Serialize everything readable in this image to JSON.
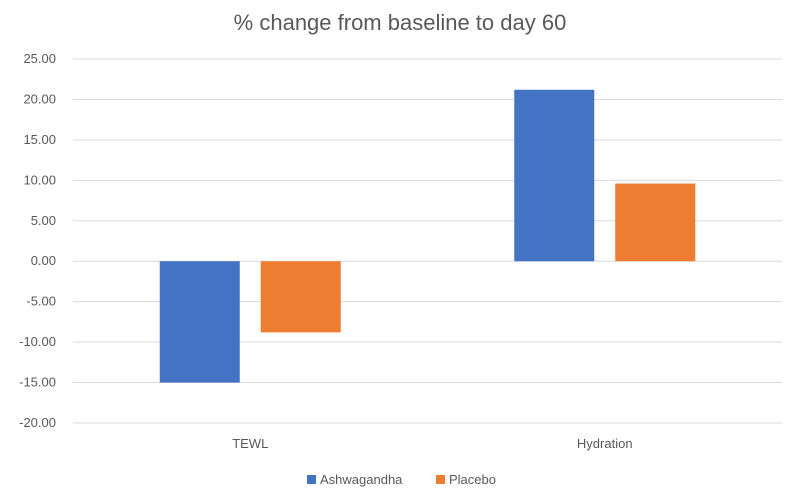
{
  "chart_data": {
    "type": "bar",
    "title": "% change from baseline to day 60",
    "xlabel": "",
    "ylabel": "",
    "categories": [
      "TEWL",
      "Hydration"
    ],
    "series": [
      {
        "name": "Ashwagandha",
        "values": [
          -15.0,
          21.2
        ],
        "color": "#4472C4"
      },
      {
        "name": "Placebo",
        "values": [
          -8.8,
          9.6
        ],
        "color": "#ED7D31"
      }
    ],
    "ylim": [
      -20,
      25
    ],
    "yticks": [
      "25.00",
      "20.00",
      "15.00",
      "10.00",
      "5.00",
      "0.00",
      "-5.00",
      "-10.00",
      "-15.00",
      "-20.00"
    ],
    "grid": true,
    "legend_position": "bottom"
  }
}
